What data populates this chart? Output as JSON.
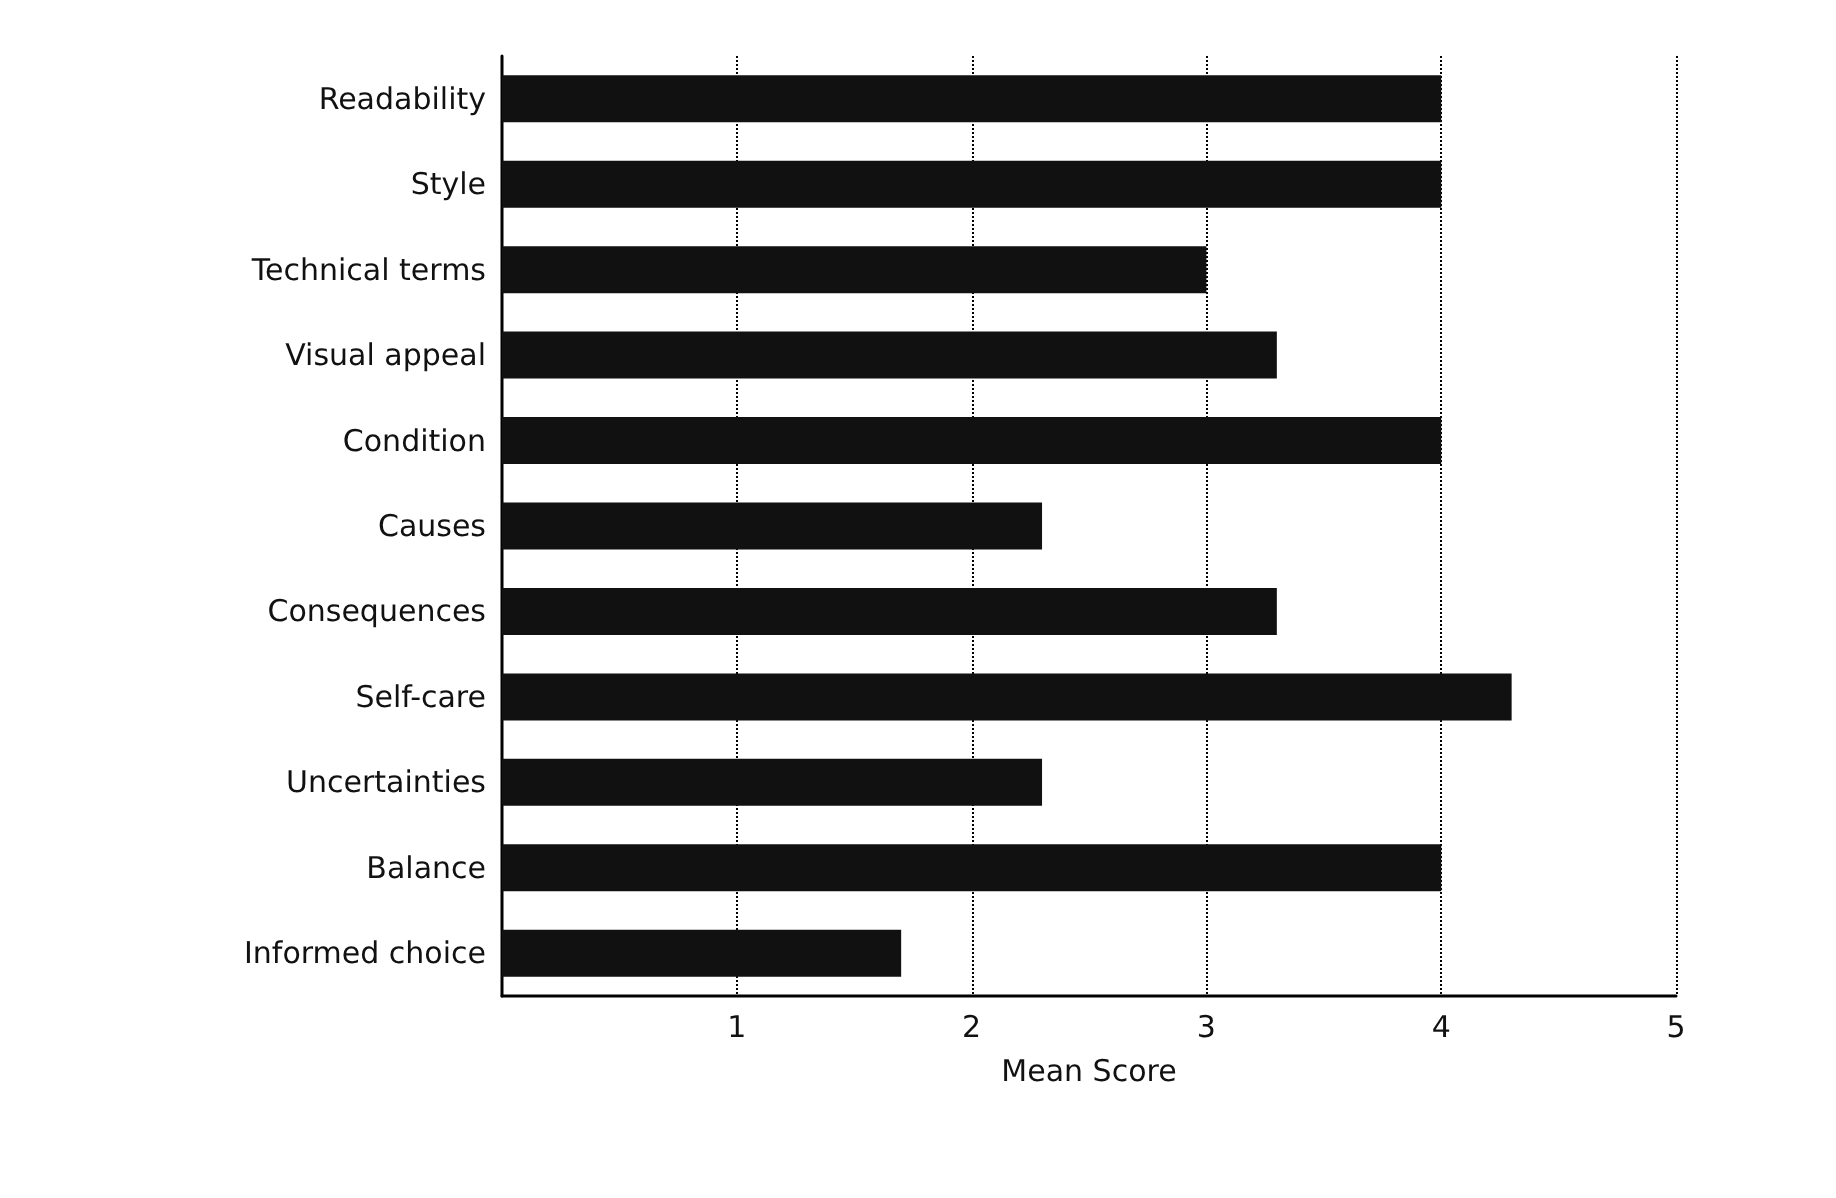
{
  "chart_data": {
    "type": "bar",
    "orientation": "horizontal",
    "xlabel": "Mean Score",
    "categories": [
      "Readability",
      "Style",
      "Technical terms",
      "Visual appeal",
      "Condition",
      "Causes",
      "Consequences",
      "Self-care",
      "Uncertainties",
      "Balance",
      "Informed choice"
    ],
    "values": [
      4.0,
      4.0,
      3.0,
      3.3,
      4.0,
      2.3,
      3.3,
      4.3,
      2.3,
      4.0,
      1.7
    ],
    "color": "#111111",
    "xlim": [
      0,
      5
    ],
    "xticks": [
      1,
      2,
      3,
      4,
      5
    ],
    "grid": "x"
  }
}
